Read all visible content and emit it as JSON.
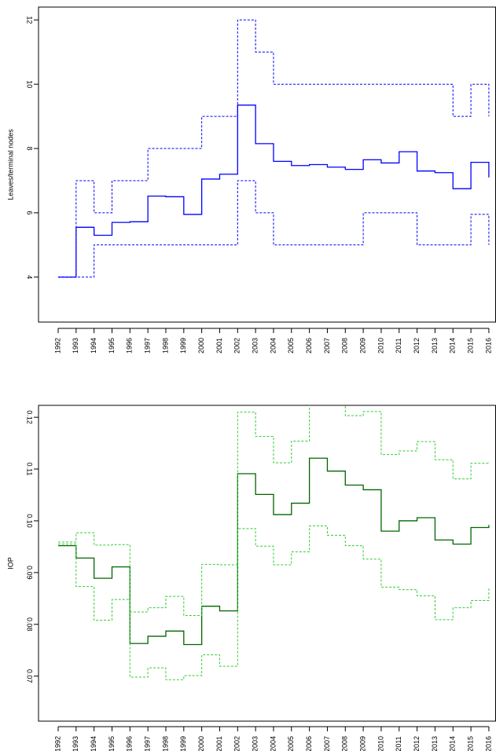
{
  "chart_data": [
    {
      "type": "line",
      "step": true,
      "title": "",
      "xlabel": "",
      "ylabel": "Leaves/terminal nodes",
      "x": [
        1992,
        1993,
        1994,
        1995,
        1996,
        1997,
        1998,
        1999,
        2000,
        2001,
        2002,
        2003,
        2004,
        2005,
        2006,
        2007,
        2008,
        2009,
        2010,
        2011,
        2012,
        2013,
        2014,
        2015,
        2016
      ],
      "xticks": [
        "1992",
        "1993",
        "1994",
        "1995",
        "1996",
        "1997",
        "1998",
        "1999",
        "2000",
        "2001",
        "2002",
        "2003",
        "2004",
        "2005",
        "2006",
        "2007",
        "2008",
        "2009",
        "2010",
        "2011",
        "2012",
        "2013",
        "2014",
        "2015",
        "2016"
      ],
      "ylim": [
        2.6,
        12.4
      ],
      "yticks": [
        4,
        6,
        8,
        10,
        12
      ],
      "ytick_labels": [
        "4",
        "6",
        "8",
        "10",
        "12"
      ],
      "grid": false,
      "series": [
        {
          "role": "estimate",
          "color": "#0000ff",
          "dashed": false,
          "values": [
            4.0,
            5.55,
            5.3,
            5.7,
            5.72,
            6.52,
            6.5,
            5.95,
            7.05,
            7.2,
            9.35,
            8.15,
            7.6,
            7.47,
            7.5,
            7.42,
            7.35,
            7.65,
            7.55,
            7.9,
            7.3,
            7.25,
            6.75,
            7.57,
            7.1
          ]
        },
        {
          "role": "upper",
          "color": "#0000ff",
          "dashed": true,
          "values": [
            4,
            7,
            6,
            7,
            7,
            8,
            8,
            8,
            9,
            9,
            12,
            11,
            10,
            10,
            10,
            10,
            10,
            10,
            10,
            10,
            10,
            10,
            9,
            10,
            9
          ]
        },
        {
          "role": "lower",
          "color": "#0000ff",
          "dashed": true,
          "values": [
            4,
            4,
            5,
            5,
            5,
            5,
            5,
            5,
            5,
            5,
            7,
            6,
            5,
            5,
            5,
            5,
            5,
            6,
            6,
            6,
            5,
            5,
            5,
            5.95,
            5
          ]
        }
      ]
    },
    {
      "type": "line",
      "step": true,
      "title": "",
      "xlabel": "",
      "ylabel": "IOP",
      "x": [
        1992,
        1993,
        1994,
        1995,
        1996,
        1997,
        1998,
        1999,
        2000,
        2001,
        2002,
        2003,
        2004,
        2005,
        2006,
        2007,
        2008,
        2009,
        2010,
        2011,
        2012,
        2013,
        2014,
        2015,
        2016
      ],
      "xticks": [
        "1992",
        "1993",
        "1994",
        "1995",
        "1996",
        "1997",
        "1998",
        "1999",
        "2000",
        "2001",
        "2002",
        "2003",
        "2004",
        "2005",
        "2006",
        "2007",
        "2008",
        "2009",
        "2010",
        "2011",
        "2012",
        "2013",
        "2014",
        "2015",
        "2016"
      ],
      "ylim": [
        0.0613,
        0.1223
      ],
      "yticks": [
        0.07,
        0.08,
        0.09,
        0.1,
        0.11,
        0.12
      ],
      "ytick_labels": [
        "0.07",
        "0.08",
        "0.09",
        "0.10",
        "0.11",
        "0.12"
      ],
      "grid": false,
      "series": [
        {
          "role": "estimate",
          "color": "#006400",
          "dashed": false,
          "values": [
            0.0952,
            0.0928,
            0.0889,
            0.0911,
            0.0763,
            0.0777,
            0.0787,
            0.0761,
            0.0835,
            0.0826,
            0.1091,
            0.1051,
            0.1012,
            0.1034,
            0.1121,
            0.1096,
            0.1069,
            0.106,
            0.098,
            0.1,
            0.1006,
            0.0963,
            0.0955,
            0.0987,
            0.0992
          ]
        },
        {
          "role": "upper",
          "color": "#33cc33",
          "dashed": true,
          "values": [
            0.0959,
            0.0977,
            0.0953,
            0.0954,
            0.0824,
            0.0832,
            0.0854,
            0.0817,
            0.0916,
            0.0915,
            0.121,
            0.1163,
            0.1112,
            0.1154,
            0.1225,
            0.1225,
            0.1203,
            0.1211,
            0.1128,
            0.1135,
            0.1153,
            0.1118,
            0.1081,
            0.1111,
            0.1114
          ]
        },
        {
          "role": "lower",
          "color": "#33cc33",
          "dashed": true,
          "values": [
            0.0955,
            0.0873,
            0.0808,
            0.0848,
            0.0698,
            0.0716,
            0.0693,
            0.0701,
            0.0741,
            0.0719,
            0.0985,
            0.0951,
            0.0915,
            0.094,
            0.099,
            0.0972,
            0.0952,
            0.0926,
            0.0872,
            0.0867,
            0.0855,
            0.0809,
            0.0832,
            0.0846,
            0.0871
          ]
        }
      ]
    }
  ]
}
